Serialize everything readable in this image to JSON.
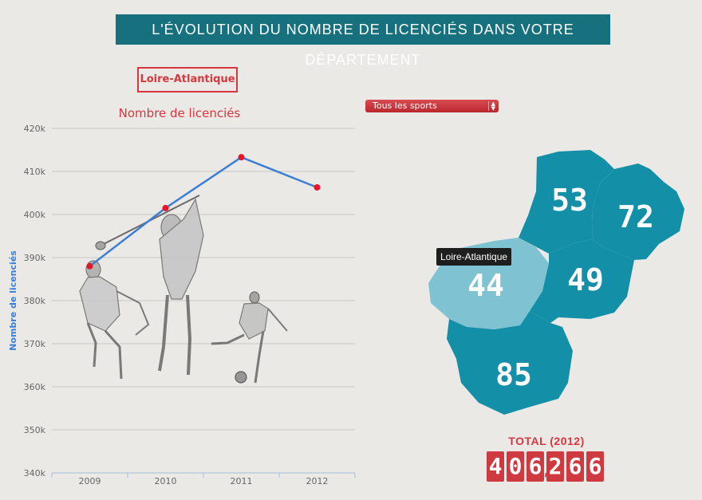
{
  "header": {
    "title": "L'ÉVOLUTION DU NOMBRE DE LICENCIÉS DANS VOTRE DÉPARTEMENT"
  },
  "department_button": {
    "label": "Loire-Atlantique"
  },
  "sport_select": {
    "selected": "Tous les sports"
  },
  "tooltip": {
    "text": "Loire-Atlantique"
  },
  "map": {
    "regions": [
      {
        "code": "53",
        "color": "#148fa8",
        "highlighted": false
      },
      {
        "code": "72",
        "color": "#148fa8",
        "highlighted": false
      },
      {
        "code": "44",
        "color": "#7fc3d2",
        "highlighted": true
      },
      {
        "code": "49",
        "color": "#148fa8",
        "highlighted": false
      },
      {
        "code": "85",
        "color": "#148fa8",
        "highlighted": false
      }
    ]
  },
  "total": {
    "label": "TOTAL (2012)",
    "digits": [
      "4",
      "0",
      "6",
      ",",
      "2",
      "6",
      "6"
    ]
  },
  "chart_data": {
    "type": "line",
    "title": "Nombre de licenciés",
    "ylabel": "Nombre de licenciés",
    "xlabel": "",
    "categories": [
      "2009",
      "2010",
      "2011",
      "2012"
    ],
    "series": [
      {
        "values": [
          388000,
          401500,
          413300,
          406300
        ]
      }
    ],
    "ylim": [
      340000,
      420000
    ],
    "yticks": [
      340000,
      350000,
      360000,
      370000,
      380000,
      390000,
      400000,
      410000,
      420000
    ],
    "ytick_labels": [
      "340k",
      "350k",
      "360k",
      "370k",
      "380k",
      "390k",
      "400k",
      "410k",
      "420k"
    ],
    "grid": true,
    "colors": {
      "line": "#3a7fd5",
      "point": "#e8142a",
      "title": "#d8373e",
      "ylabel": "#3a7fd5"
    }
  }
}
